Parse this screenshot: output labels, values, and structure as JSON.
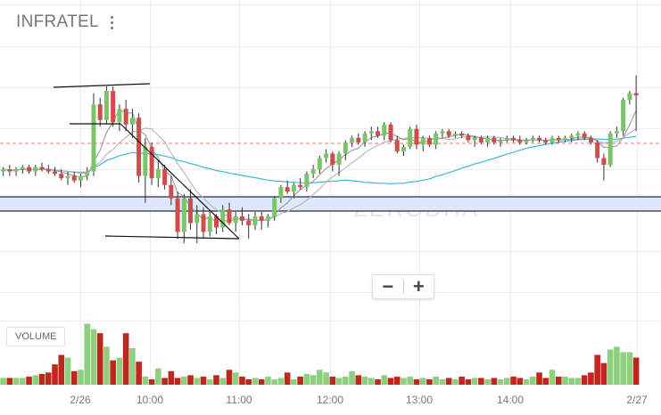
{
  "app": {
    "symbol": "INFRATEL",
    "menu_icon": "more-vertical-icon",
    "watermark": "ZERODHA",
    "zoom_out_label": "−",
    "zoom_in_label": "+",
    "volume_label": "VOLUME"
  },
  "colors": {
    "up": "#7cc46a",
    "down": "#d04b4b",
    "volume_up": "#8fd07e",
    "volume_down": "#c0271c",
    "ma_fast": "#9a9a9a",
    "ma_slow": "#b5b5b5",
    "ma_long": "#3bb9d6",
    "dashed_line": "#e07a6a",
    "zone_fill": "#dde8fb",
    "zone_border": "#2a2a3a",
    "grid": "#ececec"
  },
  "chart_data": {
    "type": "candlestick",
    "x_ticks": [
      "2/26",
      "10:00",
      "11:00",
      "12:00",
      "13:00",
      "14:00",
      "2/27"
    ],
    "candles": [
      {
        "o": 190,
        "h": 192,
        "l": 188,
        "c": 191
      },
      {
        "o": 191,
        "h": 193,
        "l": 188,
        "c": 190
      },
      {
        "o": 190,
        "h": 192,
        "l": 188,
        "c": 191
      },
      {
        "o": 191,
        "h": 193,
        "l": 189,
        "c": 192
      },
      {
        "o": 192,
        "h": 193,
        "l": 189,
        "c": 190
      },
      {
        "o": 190,
        "h": 193,
        "l": 188,
        "c": 192
      },
      {
        "o": 192,
        "h": 194,
        "l": 190,
        "c": 191
      },
      {
        "o": 191,
        "h": 193,
        "l": 189,
        "c": 190
      },
      {
        "o": 190,
        "h": 192,
        "l": 188,
        "c": 189
      },
      {
        "o": 189,
        "h": 191,
        "l": 186,
        "c": 187
      },
      {
        "o": 187,
        "h": 190,
        "l": 184,
        "c": 188
      },
      {
        "o": 188,
        "h": 190,
        "l": 185,
        "c": 186
      },
      {
        "o": 186,
        "h": 189,
        "l": 183,
        "c": 188
      },
      {
        "o": 188,
        "h": 192,
        "l": 186,
        "c": 190
      },
      {
        "o": 190,
        "h": 225,
        "l": 188,
        "c": 220
      },
      {
        "o": 220,
        "h": 223,
        "l": 210,
        "c": 213
      },
      {
        "o": 213,
        "h": 228,
        "l": 211,
        "c": 226
      },
      {
        "o": 226,
        "h": 228,
        "l": 210,
        "c": 212
      },
      {
        "o": 212,
        "h": 220,
        "l": 208,
        "c": 218
      },
      {
        "o": 218,
        "h": 222,
        "l": 208,
        "c": 211
      },
      {
        "o": 211,
        "h": 218,
        "l": 205,
        "c": 214
      },
      {
        "o": 214,
        "h": 216,
        "l": 185,
        "c": 188
      },
      {
        "o": 188,
        "h": 205,
        "l": 176,
        "c": 201
      },
      {
        "o": 201,
        "h": 203,
        "l": 184,
        "c": 187
      },
      {
        "o": 187,
        "h": 195,
        "l": 183,
        "c": 191
      },
      {
        "o": 191,
        "h": 193,
        "l": 182,
        "c": 184
      },
      {
        "o": 184,
        "h": 188,
        "l": 175,
        "c": 178
      },
      {
        "o": 178,
        "h": 181,
        "l": 160,
        "c": 163
      },
      {
        "o": 163,
        "h": 180,
        "l": 158,
        "c": 178
      },
      {
        "o": 178,
        "h": 182,
        "l": 164,
        "c": 167
      },
      {
        "o": 167,
        "h": 175,
        "l": 158,
        "c": 171
      },
      {
        "o": 171,
        "h": 174,
        "l": 160,
        "c": 163
      },
      {
        "o": 163,
        "h": 172,
        "l": 161,
        "c": 170
      },
      {
        "o": 170,
        "h": 171,
        "l": 162,
        "c": 165
      },
      {
        "o": 165,
        "h": 175,
        "l": 163,
        "c": 173
      },
      {
        "o": 173,
        "h": 176,
        "l": 166,
        "c": 167
      },
      {
        "o": 167,
        "h": 172,
        "l": 163,
        "c": 170
      },
      {
        "o": 170,
        "h": 174,
        "l": 166,
        "c": 168
      },
      {
        "o": 168,
        "h": 171,
        "l": 160,
        "c": 166
      },
      {
        "o": 166,
        "h": 172,
        "l": 164,
        "c": 170
      },
      {
        "o": 170,
        "h": 172,
        "l": 164,
        "c": 168
      },
      {
        "o": 168,
        "h": 171,
        "l": 165,
        "c": 170
      },
      {
        "o": 170,
        "h": 179,
        "l": 168,
        "c": 178
      },
      {
        "o": 178,
        "h": 184,
        "l": 176,
        "c": 183
      },
      {
        "o": 183,
        "h": 186,
        "l": 180,
        "c": 181
      },
      {
        "o": 181,
        "h": 185,
        "l": 178,
        "c": 184
      },
      {
        "o": 184,
        "h": 187,
        "l": 182,
        "c": 183
      },
      {
        "o": 183,
        "h": 190,
        "l": 181,
        "c": 189
      },
      {
        "o": 189,
        "h": 193,
        "l": 187,
        "c": 191
      },
      {
        "o": 191,
        "h": 197,
        "l": 189,
        "c": 196
      },
      {
        "o": 196,
        "h": 200,
        "l": 194,
        "c": 198
      },
      {
        "o": 198,
        "h": 199,
        "l": 190,
        "c": 193
      },
      {
        "o": 193,
        "h": 199,
        "l": 188,
        "c": 198
      },
      {
        "o": 198,
        "h": 204,
        "l": 195,
        "c": 203
      },
      {
        "o": 203,
        "h": 206,
        "l": 201,
        "c": 205
      },
      {
        "o": 205,
        "h": 207,
        "l": 202,
        "c": 203
      },
      {
        "o": 203,
        "h": 208,
        "l": 201,
        "c": 207
      },
      {
        "o": 207,
        "h": 210,
        "l": 204,
        "c": 208
      },
      {
        "o": 208,
        "h": 210,
        "l": 205,
        "c": 206
      },
      {
        "o": 206,
        "h": 212,
        "l": 204,
        "c": 211
      },
      {
        "o": 211,
        "h": 212,
        "l": 203,
        "c": 204
      },
      {
        "o": 204,
        "h": 206,
        "l": 198,
        "c": 199
      },
      {
        "o": 199,
        "h": 202,
        "l": 197,
        "c": 201
      },
      {
        "o": 201,
        "h": 210,
        "l": 200,
        "c": 209
      },
      {
        "o": 209,
        "h": 211,
        "l": 200,
        "c": 202
      },
      {
        "o": 202,
        "h": 206,
        "l": 199,
        "c": 205
      },
      {
        "o": 205,
        "h": 206,
        "l": 201,
        "c": 202
      },
      {
        "o": 202,
        "h": 208,
        "l": 200,
        "c": 207
      },
      {
        "o": 207,
        "h": 209,
        "l": 205,
        "c": 208
      },
      {
        "o": 208,
        "h": 209,
        "l": 205,
        "c": 206
      },
      {
        "o": 206,
        "h": 208,
        "l": 205,
        "c": 207
      },
      {
        "o": 207,
        "h": 208,
        "l": 205,
        "c": 206
      },
      {
        "o": 206,
        "h": 207,
        "l": 203,
        "c": 204
      },
      {
        "o": 204,
        "h": 206,
        "l": 201,
        "c": 205
      },
      {
        "o": 205,
        "h": 206,
        "l": 202,
        "c": 203
      },
      {
        "o": 203,
        "h": 206,
        "l": 201,
        "c": 205
      },
      {
        "o": 205,
        "h": 206,
        "l": 202,
        "c": 203
      },
      {
        "o": 203,
        "h": 205,
        "l": 201,
        "c": 204
      },
      {
        "o": 204,
        "h": 206,
        "l": 203,
        "c": 205
      },
      {
        "o": 205,
        "h": 206,
        "l": 203,
        "c": 204
      },
      {
        "o": 204,
        "h": 206,
        "l": 202,
        "c": 203
      },
      {
        "o": 203,
        "h": 205,
        "l": 202,
        "c": 204
      },
      {
        "o": 204,
        "h": 206,
        "l": 203,
        "c": 205
      },
      {
        "o": 205,
        "h": 206,
        "l": 203,
        "c": 204
      },
      {
        "o": 204,
        "h": 205,
        "l": 202,
        "c": 203
      },
      {
        "o": 203,
        "h": 206,
        "l": 202,
        "c": 205
      },
      {
        "o": 205,
        "h": 206,
        "l": 203,
        "c": 204
      },
      {
        "o": 204,
        "h": 206,
        "l": 203,
        "c": 205
      },
      {
        "o": 205,
        "h": 207,
        "l": 203,
        "c": 206
      },
      {
        "o": 206,
        "h": 208,
        "l": 204,
        "c": 207
      },
      {
        "o": 207,
        "h": 208,
        "l": 204,
        "c": 205
      },
      {
        "o": 205,
        "h": 206,
        "l": 202,
        "c": 203
      },
      {
        "o": 203,
        "h": 204,
        "l": 194,
        "c": 196
      },
      {
        "o": 196,
        "h": 198,
        "l": 186,
        "c": 193
      },
      {
        "o": 193,
        "h": 208,
        "l": 192,
        "c": 207
      },
      {
        "o": 207,
        "h": 210,
        "l": 205,
        "c": 208
      },
      {
        "o": 208,
        "h": 223,
        "l": 206,
        "c": 222
      },
      {
        "o": 222,
        "h": 226,
        "l": 220,
        "c": 225
      },
      {
        "o": 225,
        "h": 233,
        "l": 208,
        "c": 224
      }
    ],
    "volume": [
      10,
      10,
      10,
      10,
      12,
      14,
      16,
      18,
      30,
      44,
      40,
      20,
      22,
      90,
      82,
      76,
      56,
      36,
      40,
      76,
      54,
      34,
      12,
      8,
      24,
      10,
      20,
      10,
      12,
      14,
      10,
      12,
      8,
      14,
      10,
      22,
      18,
      12,
      8,
      10,
      8,
      12,
      8,
      10,
      18,
      8,
      12,
      16,
      14,
      22,
      18,
      12,
      10,
      12,
      20,
      14,
      12,
      10,
      8,
      14,
      10,
      12,
      10,
      12,
      8,
      10,
      8,
      12,
      8,
      10,
      8,
      12,
      8,
      10,
      10,
      8,
      10,
      8,
      10,
      12,
      10,
      8,
      12,
      18,
      10,
      22,
      12,
      12,
      10,
      10,
      14,
      18,
      44,
      32,
      52,
      56,
      48,
      48,
      40
    ],
    "moving_averages": [
      {
        "name": "fast",
        "color_key": "ma_fast"
      },
      {
        "name": "slow",
        "color_key": "ma_slow"
      },
      {
        "name": "long",
        "color_key": "ma_long"
      }
    ]
  }
}
